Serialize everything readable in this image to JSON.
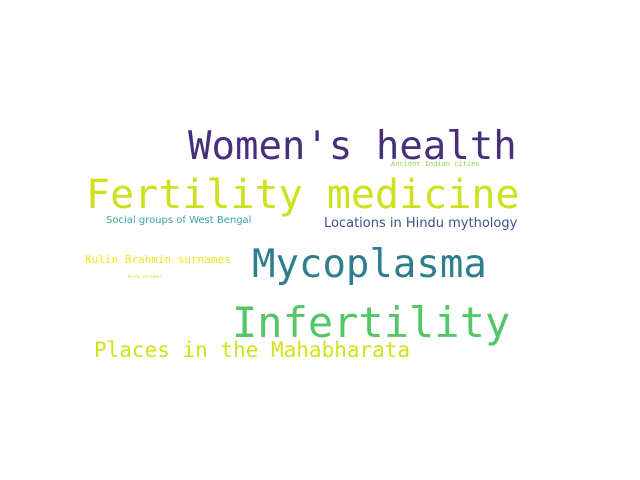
{
  "words": [
    {
      "text": "Women's health",
      "color": "#472f7d"
    },
    {
      "text": "Fertility medicine",
      "color": "#cde11d"
    },
    {
      "text": "Mycoplasma",
      "color": "#2e7e8e"
    },
    {
      "text": "Infertility",
      "color": "#55c667"
    },
    {
      "text": "Places in the Mahabharata",
      "color": "#d2e21b"
    },
    {
      "text": "Locations in Hindu mythology",
      "color": "#3b528b"
    },
    {
      "text": "Social groups of West Bengal",
      "color": "#37a6a0"
    },
    {
      "text": "Kulin Brahmin surnames",
      "color": "#f2e51d"
    },
    {
      "text": "Ancient Indian cities",
      "color": "#8ed645"
    },
    {
      "text": "Hindu surnames",
      "color": "#c2df23"
    }
  ]
}
